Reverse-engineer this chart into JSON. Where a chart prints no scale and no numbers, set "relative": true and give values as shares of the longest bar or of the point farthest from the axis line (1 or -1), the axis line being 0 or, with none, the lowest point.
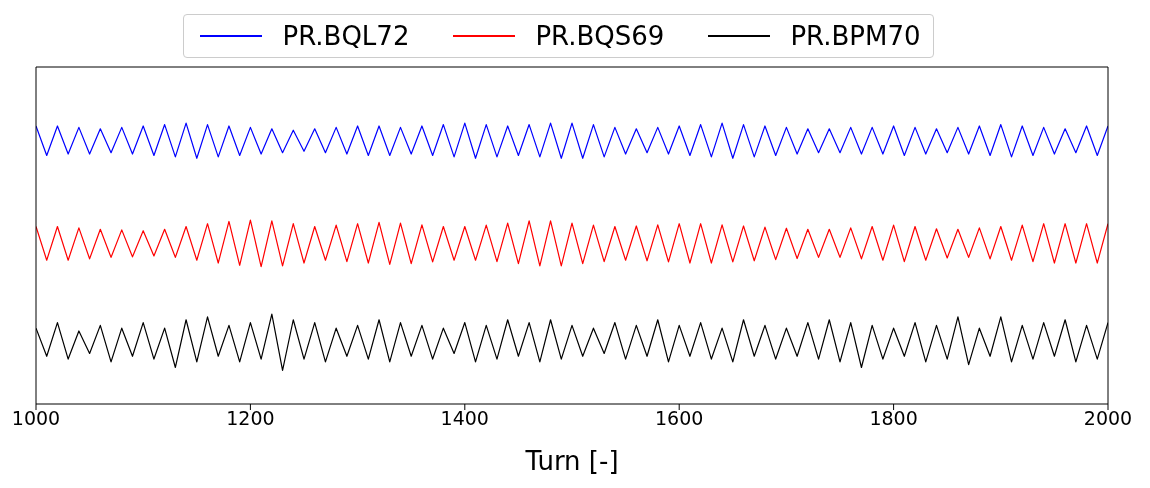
{
  "chart_data": {
    "type": "line",
    "xlabel": "Turn [-]",
    "relative": true,
    "legend": "top",
    "xlim": [
      1000,
      2000
    ],
    "xticks": [
      1000,
      1200,
      1400,
      1600,
      1800,
      2000
    ],
    "x": [
      1000,
      1010,
      1020,
      1030,
      1040,
      1050,
      1060,
      1070,
      1080,
      1090,
      1100,
      1110,
      1120,
      1130,
      1140,
      1150,
      1160,
      1170,
      1180,
      1190,
      1200,
      1210,
      1220,
      1230,
      1240,
      1250,
      1260,
      1270,
      1280,
      1290,
      1300,
      1310,
      1320,
      1330,
      1340,
      1350,
      1360,
      1370,
      1380,
      1390,
      1400,
      1410,
      1420,
      1430,
      1440,
      1450,
      1460,
      1470,
      1480,
      1490,
      1500,
      1510,
      1520,
      1530,
      1540,
      1550,
      1560,
      1570,
      1580,
      1590,
      1600,
      1610,
      1620,
      1630,
      1640,
      1650,
      1660,
      1670,
      1680,
      1690,
      1700,
      1710,
      1720,
      1730,
      1740,
      1750,
      1760,
      1770,
      1780,
      1790,
      1800,
      1810,
      1820,
      1830,
      1840,
      1850,
      1860,
      1870,
      1880,
      1890,
      1900,
      1910,
      1920,
      1930,
      1940,
      1950,
      1960,
      1970,
      1980,
      1990,
      2000
    ],
    "series": [
      {
        "name": "PR.BQL72",
        "color": "#0000ff",
        "values": [
          0.99,
          0.885,
          0.99,
          0.89,
          0.985,
          0.89,
          0.98,
          0.895,
          0.985,
          0.89,
          0.99,
          0.885,
          0.995,
          0.88,
          1.0,
          0.875,
          0.995,
          0.88,
          0.99,
          0.885,
          0.985,
          0.89,
          0.98,
          0.895,
          0.975,
          0.9,
          0.98,
          0.895,
          0.985,
          0.89,
          0.99,
          0.885,
          0.99,
          0.885,
          0.985,
          0.89,
          0.99,
          0.885,
          0.995,
          0.88,
          1.0,
          0.875,
          0.995,
          0.88,
          0.99,
          0.885,
          0.995,
          0.88,
          1.0,
          0.875,
          1.0,
          0.875,
          0.995,
          0.88,
          0.985,
          0.89,
          0.98,
          0.895,
          0.985,
          0.89,
          0.99,
          0.885,
          0.995,
          0.88,
          1.0,
          0.875,
          0.995,
          0.88,
          0.99,
          0.885,
          0.985,
          0.89,
          0.98,
          0.895,
          0.98,
          0.895,
          0.985,
          0.89,
          0.985,
          0.89,
          0.99,
          0.885,
          0.985,
          0.89,
          0.98,
          0.895,
          0.985,
          0.89,
          0.99,
          0.885,
          0.995,
          0.88,
          0.99,
          0.885,
          0.985,
          0.89,
          0.98,
          0.895,
          0.99,
          0.885,
          0.99
        ]
      },
      {
        "name": "PR.BQS69",
        "color": "#ff0000",
        "values": [
          0.632,
          0.512,
          0.632,
          0.512,
          0.627,
          0.517,
          0.622,
          0.522,
          0.62,
          0.524,
          0.617,
          0.527,
          0.622,
          0.522,
          0.632,
          0.512,
          0.642,
          0.502,
          0.65,
          0.494,
          0.655,
          0.489,
          0.652,
          0.492,
          0.642,
          0.502,
          0.632,
          0.512,
          0.637,
          0.507,
          0.642,
          0.502,
          0.647,
          0.497,
          0.644,
          0.5,
          0.638,
          0.506,
          0.632,
          0.512,
          0.632,
          0.512,
          0.637,
          0.507,
          0.644,
          0.5,
          0.652,
          0.492,
          0.652,
          0.492,
          0.644,
          0.5,
          0.637,
          0.507,
          0.632,
          0.512,
          0.634,
          0.51,
          0.638,
          0.506,
          0.642,
          0.502,
          0.642,
          0.502,
          0.638,
          0.506,
          0.634,
          0.51,
          0.63,
          0.514,
          0.626,
          0.518,
          0.622,
          0.522,
          0.622,
          0.522,
          0.627,
          0.517,
          0.632,
          0.512,
          0.637,
          0.507,
          0.632,
          0.512,
          0.624,
          0.52,
          0.622,
          0.522,
          0.627,
          0.517,
          0.632,
          0.512,
          0.637,
          0.507,
          0.642,
          0.502,
          0.642,
          0.502,
          0.642,
          0.502,
          0.642
        ]
      },
      {
        "name": "PR.BPM70",
        "color": "#000000",
        "values": [
          0.27,
          0.17,
          0.29,
          0.16,
          0.26,
          0.18,
          0.28,
          0.15,
          0.27,
          0.17,
          0.29,
          0.16,
          0.27,
          0.13,
          0.3,
          0.15,
          0.31,
          0.17,
          0.28,
          0.15,
          0.29,
          0.16,
          0.32,
          0.12,
          0.3,
          0.16,
          0.29,
          0.15,
          0.27,
          0.17,
          0.28,
          0.16,
          0.3,
          0.15,
          0.29,
          0.17,
          0.28,
          0.16,
          0.27,
          0.18,
          0.29,
          0.15,
          0.28,
          0.16,
          0.3,
          0.17,
          0.29,
          0.15,
          0.3,
          0.16,
          0.28,
          0.17,
          0.27,
          0.18,
          0.29,
          0.16,
          0.28,
          0.17,
          0.3,
          0.15,
          0.28,
          0.17,
          0.29,
          0.16,
          0.27,
          0.15,
          0.3,
          0.17,
          0.28,
          0.16,
          0.27,
          0.17,
          0.29,
          0.16,
          0.3,
          0.15,
          0.29,
          0.13,
          0.28,
          0.16,
          0.27,
          0.17,
          0.29,
          0.15,
          0.28,
          0.16,
          0.31,
          0.14,
          0.27,
          0.17,
          0.31,
          0.15,
          0.28,
          0.16,
          0.29,
          0.17,
          0.3,
          0.15,
          0.28,
          0.16,
          0.29
        ]
      }
    ]
  }
}
